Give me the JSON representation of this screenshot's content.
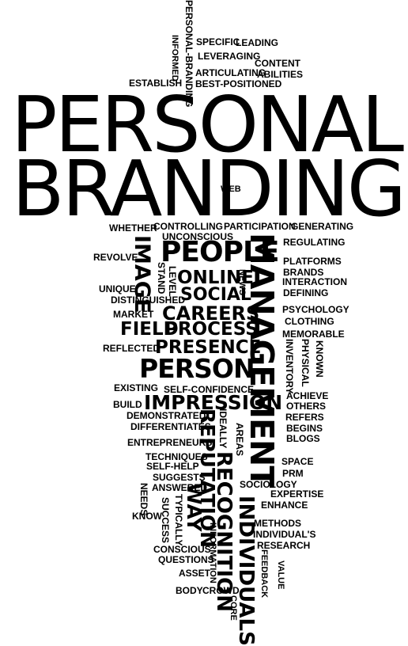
{
  "words": [
    "PERSONAL",
    "BRANDING",
    "PERSONAL-BRANDING",
    "INFORMED",
    "SPECIFIC",
    "LEADING",
    "LEVERAGING",
    "CONTENT",
    "ARTICULATING",
    "ABILITIES",
    "ESTABLISH",
    "BEST-POSITIONED",
    "WEB",
    "WHETHER",
    "CONTROLLING",
    "PARTICIPATION",
    "GENERATING",
    "UNCONSCIOUS",
    "REGULATING",
    "IMAGE",
    "PEOPLE",
    "MANAGEMENT",
    "REVOLVE",
    "STAND",
    "LEVEL",
    "PLATFORMS",
    "BRANDS",
    "ONLINE",
    "NEWS",
    "INTERACTION",
    "UNIQUE",
    "SOCIAL",
    "DEFINING",
    "DISTINGUISHED",
    "MARKET",
    "CAREERS",
    "PSYCHOLOGY",
    "CLOTHING",
    "FIELD",
    "PROCESS",
    "MEMORABLE",
    "REFLECTED",
    "PRESENCE",
    "INVENTORY",
    "PHYSICAL",
    "KNOWN",
    "PERSON",
    "EXISTING",
    "SELF-CONFIDENCE",
    "ACHIEVE",
    "BUILD",
    "IMPRESSION",
    "OTHERS",
    "DEMONSTRATED",
    "REFERS",
    "DIFFERENTIATES",
    "IDEALLY",
    "REPUTATION",
    "AREAS",
    "BEGINS",
    "BLOGS",
    "ENTREPRENEURS",
    "TECHNIQUES",
    "RECOGNITION",
    "SPACE",
    "SELF-HELP",
    "PRM",
    "SUGGESTS",
    "ANSWERED",
    "SOCIOLOGY",
    "EXPERTISE",
    "NEEDS",
    "WAY",
    "INDIVIDUALS",
    "ENHANCE",
    "KNOW",
    "SUCCESS",
    "TYPICALLY",
    "METHODS",
    "INFORMATION",
    "INDIVIDUAL'S",
    "CONSCIOUS",
    "RESEARCH",
    "QUESTIONS",
    "FEEDBACK",
    "VALUE",
    "ASSET",
    "BODY",
    "CROWD",
    "CORE"
  ]
}
